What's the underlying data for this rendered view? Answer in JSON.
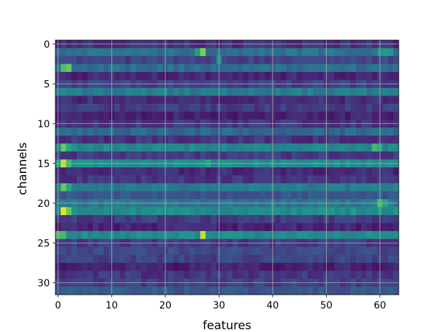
{
  "chart_data": {
    "type": "heatmap",
    "title": "",
    "xlabel": "features",
    "ylabel": "channels",
    "colormap": "viridis",
    "grid": true,
    "n_rows": 32,
    "n_cols": 64,
    "xlim": [
      -0.5,
      63.5
    ],
    "ylim": [
      31.5,
      -0.5
    ],
    "x_ticks": [
      0,
      10,
      20,
      30,
      40,
      50,
      60
    ],
    "y_ticks": [
      0,
      5,
      10,
      15,
      20,
      25,
      30
    ],
    "x_tick_labels": [
      "0",
      "10",
      "20",
      "30",
      "40",
      "50",
      "60"
    ],
    "y_tick_labels": [
      "0",
      "5",
      "10",
      "15",
      "20",
      "25",
      "30"
    ],
    "row_profile": [
      0.18,
      0.48,
      0.25,
      0.45,
      0.14,
      0.24,
      0.52,
      0.16,
      0.22,
      0.12,
      0.2,
      0.42,
      0.18,
      0.58,
      0.22,
      0.62,
      0.16,
      0.2,
      0.52,
      0.34,
      0.5,
      0.6,
      0.22,
      0.14,
      0.6,
      0.22,
      0.28,
      0.25,
      0.12,
      0.2,
      0.24,
      0.35
    ],
    "highlights": [
      {
        "row": 1,
        "col": 27,
        "value": 0.88
      },
      {
        "row": 1,
        "col": 26,
        "value": 0.7
      },
      {
        "row": 1,
        "col": 60,
        "value": 0.65
      },
      {
        "row": 1,
        "col": 61,
        "value": 0.68
      },
      {
        "row": 1,
        "col": 62,
        "value": 0.66
      },
      {
        "row": 2,
        "col": 30,
        "value": 0.62
      },
      {
        "row": 3,
        "col": 1,
        "value": 0.82
      },
      {
        "row": 3,
        "col": 2,
        "value": 0.85
      },
      {
        "row": 13,
        "col": 1,
        "value": 0.85
      },
      {
        "row": 13,
        "col": 2,
        "value": 0.75
      },
      {
        "row": 13,
        "col": 59,
        "value": 0.8
      },
      {
        "row": 13,
        "col": 60,
        "value": 0.75
      },
      {
        "row": 15,
        "col": 1,
        "value": 0.95
      },
      {
        "row": 15,
        "col": 2,
        "value": 0.8
      },
      {
        "row": 15,
        "col": 28,
        "value": 0.75
      },
      {
        "row": 18,
        "col": 1,
        "value": 0.85
      },
      {
        "row": 18,
        "col": 2,
        "value": 0.75
      },
      {
        "row": 20,
        "col": 60,
        "value": 0.8
      },
      {
        "row": 20,
        "col": 61,
        "value": 0.72
      },
      {
        "row": 21,
        "col": 1,
        "value": 0.98
      },
      {
        "row": 21,
        "col": 2,
        "value": 0.85
      },
      {
        "row": 21,
        "col": 55,
        "value": 0.7
      },
      {
        "row": 24,
        "col": 0,
        "value": 0.82
      },
      {
        "row": 24,
        "col": 1,
        "value": 0.8
      },
      {
        "row": 24,
        "col": 27,
        "value": 0.95
      },
      {
        "row": 24,
        "col": 28,
        "value": 0.62
      }
    ]
  }
}
